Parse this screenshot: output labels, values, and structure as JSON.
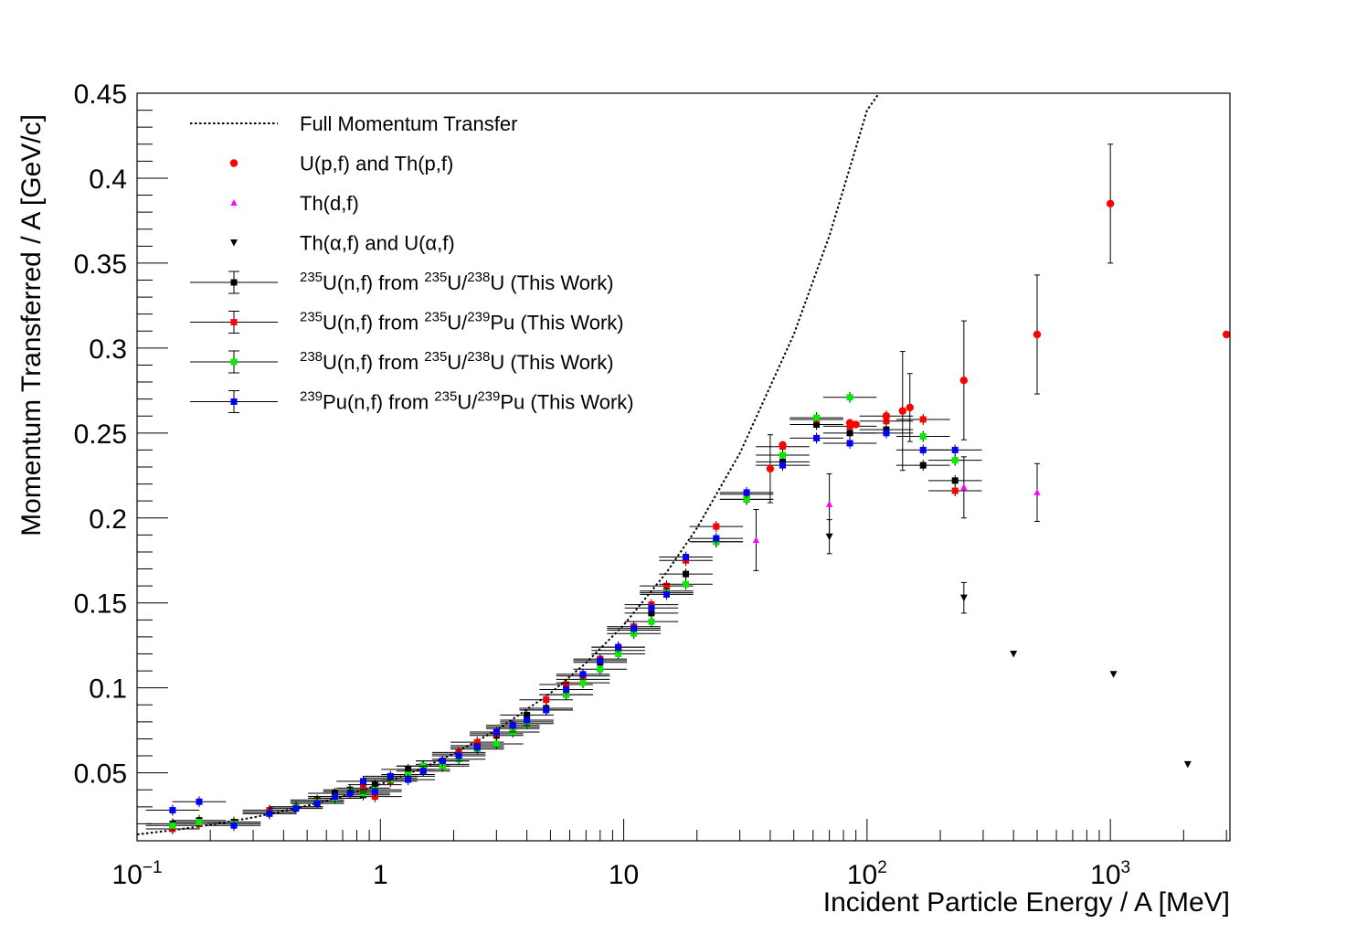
{
  "chart_data": {
    "type": "scatter",
    "xscale": "log",
    "xlim": [
      0.1,
      3100
    ],
    "ylim": [
      0.01,
      0.45
    ],
    "xlabel": "Incident Particle Energy / A [MeV]",
    "ylabel": "Momentum Transferred / A [GeV/c]",
    "x_ticks": [
      {
        "v": 0.1,
        "base": "10",
        "exp": "−1"
      },
      {
        "v": 1,
        "label": "1"
      },
      {
        "v": 10,
        "label": "10"
      },
      {
        "v": 100,
        "base": "10",
        "exp": "2"
      },
      {
        "v": 1000,
        "base": "10",
        "exp": "3"
      }
    ],
    "y_ticks": [
      {
        "v": 0.05,
        "label": "0.05"
      },
      {
        "v": 0.1,
        "label": "0.1"
      },
      {
        "v": 0.15,
        "label": "0.15"
      },
      {
        "v": 0.2,
        "label": "0.2"
      },
      {
        "v": 0.25,
        "label": "0.25"
      },
      {
        "v": 0.3,
        "label": "0.3"
      },
      {
        "v": 0.35,
        "label": "0.35"
      },
      {
        "v": 0.4,
        "label": "0.4"
      },
      {
        "v": 0.45,
        "label": "0.45"
      }
    ],
    "legend": {
      "placement": "top-left",
      "entries": [
        {
          "key": "curve",
          "parts": [
            {
              "t": "Full Momentum Transfer"
            }
          ]
        },
        {
          "key": "up",
          "parts": [
            {
              "t": "U(p,f) and Th(p,f)"
            }
          ]
        },
        {
          "key": "thd",
          "parts": [
            {
              "t": "Th(d,f)"
            }
          ]
        },
        {
          "key": "alpha",
          "parts": [
            {
              "t": "Th(α,f) and U(α,f)"
            }
          ]
        },
        {
          "key": "s1",
          "parts": [
            {
              "s": "235"
            },
            {
              "t": "U(n,f) from "
            },
            {
              "s": "235"
            },
            {
              "t": "U/"
            },
            {
              "s": "238"
            },
            {
              "t": "U (This Work)"
            }
          ]
        },
        {
          "key": "s2",
          "parts": [
            {
              "s": "235"
            },
            {
              "t": "U(n,f) from "
            },
            {
              "s": "235"
            },
            {
              "t": "U/"
            },
            {
              "s": "239"
            },
            {
              "t": "Pu (This Work)"
            }
          ]
        },
        {
          "key": "s3",
          "parts": [
            {
              "s": "238"
            },
            {
              "t": "U(n,f) from "
            },
            {
              "s": "235"
            },
            {
              "t": "U/"
            },
            {
              "s": "238"
            },
            {
              "t": "U (This Work)"
            }
          ]
        },
        {
          "key": "s4",
          "parts": [
            {
              "s": "239"
            },
            {
              "t": "Pu(n,f) from "
            },
            {
              "s": "235"
            },
            {
              "t": "U/"
            },
            {
              "s": "239"
            },
            {
              "t": "Pu (This Work)"
            }
          ]
        }
      ]
    },
    "curve": {
      "name": "Full Momentum Transfer",
      "style": "dotted",
      "x": [
        0.1,
        0.15,
        0.2,
        0.3,
        0.5,
        0.7,
        1,
        1.5,
        2,
        3,
        5,
        7,
        10,
        15,
        20,
        30,
        50,
        70,
        90,
        100,
        112
      ],
      "y": [
        0.0137,
        0.0168,
        0.0194,
        0.0237,
        0.0306,
        0.0362,
        0.0433,
        0.053,
        0.0613,
        0.075,
        0.0969,
        0.1147,
        0.137,
        0.168,
        0.194,
        0.238,
        0.308,
        0.366,
        0.418,
        0.44,
        0.45
      ]
    },
    "literature": [
      {
        "key": "up",
        "name": "U(p,f) and Th(p,f)",
        "color": "#ff0000",
        "marker": "circle",
        "points": [
          {
            "x": 40,
            "y": 0.229,
            "err": 0.02
          },
          {
            "x": 45,
            "y": 0.243
          },
          {
            "x": 85,
            "y": 0.256
          },
          {
            "x": 90,
            "y": 0.255
          },
          {
            "x": 120,
            "y": 0.26
          },
          {
            "x": 140,
            "y": 0.263,
            "err": 0.035
          },
          {
            "x": 150,
            "y": 0.265,
            "err": 0.02
          },
          {
            "x": 250,
            "y": 0.281,
            "err": 0.035
          },
          {
            "x": 500,
            "y": 0.308,
            "err": 0.035
          },
          {
            "x": 1000,
            "y": 0.385,
            "err": 0.035
          },
          {
            "x": 3000,
            "y": 0.308
          }
        ]
      },
      {
        "key": "thd",
        "name": "Th(d,f)",
        "color": "#ff00ff",
        "marker": "triangle-up",
        "points": [
          {
            "x": 35,
            "y": 0.187,
            "err": 0.018
          },
          {
            "x": 70,
            "y": 0.208,
            "err": 0.018
          },
          {
            "x": 250,
            "y": 0.218,
            "err": 0.018
          },
          {
            "x": 500,
            "y": 0.215,
            "err": 0.017
          }
        ]
      },
      {
        "key": "alpha",
        "name": "Th(α,f) and U(α,f)",
        "color": "#000000",
        "marker": "triangle-down",
        "points": [
          {
            "x": 70,
            "y": 0.189,
            "err": 0.01
          },
          {
            "x": 250,
            "y": 0.153,
            "err": 0.009
          },
          {
            "x": 400,
            "y": 0.12
          },
          {
            "x": 1030,
            "y": 0.108
          },
          {
            "x": 2080,
            "y": 0.055
          }
        ]
      }
    ],
    "series": [
      {
        "key": "s1",
        "name": "235U(n,f) from 235U/238U (This Work)",
        "color": "#000000",
        "x": [
          0.14,
          0.18,
          0.25,
          0.35,
          0.45,
          0.55,
          0.65,
          0.75,
          0.85,
          0.95,
          1.1,
          1.3,
          1.5,
          1.8,
          2.1,
          2.5,
          3,
          3.5,
          4,
          4.8,
          5.8,
          6.8,
          8,
          9.5,
          11,
          13,
          15,
          18,
          24,
          32,
          45,
          62,
          85,
          120,
          170,
          230
        ],
        "y": [
          0.02,
          0.022,
          0.021,
          0.027,
          0.03,
          0.033,
          0.038,
          0.04,
          0.037,
          0.043,
          0.047,
          0.052,
          0.054,
          0.057,
          0.061,
          0.066,
          0.072,
          0.077,
          0.084,
          0.088,
          0.096,
          0.105,
          0.115,
          0.122,
          0.134,
          0.144,
          0.157,
          0.167,
          0.186,
          0.211,
          0.233,
          0.255,
          0.25,
          0.252,
          0.231,
          0.222
        ]
      },
      {
        "key": "s2",
        "name": "235U(n,f) from 235U/239Pu (This Work)",
        "color": "#ff0000",
        "x": [
          0.14,
          0.18,
          0.25,
          0.35,
          0.45,
          0.55,
          0.65,
          0.75,
          0.85,
          0.95,
          1.1,
          1.3,
          1.5,
          1.8,
          2.1,
          2.5,
          3,
          3.5,
          4,
          4.8,
          5.8,
          6.8,
          8,
          9.5,
          11,
          13,
          15,
          18,
          24,
          32,
          45,
          62,
          85,
          120,
          170,
          230
        ],
        "y": [
          0.017,
          0.02,
          0.02,
          0.028,
          0.03,
          0.034,
          0.036,
          0.039,
          0.041,
          0.036,
          0.045,
          0.048,
          0.052,
          0.055,
          0.062,
          0.068,
          0.073,
          0.076,
          0.08,
          0.093,
          0.102,
          0.107,
          0.117,
          0.124,
          0.136,
          0.149,
          0.16,
          0.175,
          0.195,
          0.214,
          0.242,
          0.258,
          0.254,
          0.257,
          0.258,
          0.216
        ]
      },
      {
        "key": "s3",
        "name": "238U(n,f) from 235U/238U (This Work)",
        "color": "#00ee00",
        "x": [
          0.14,
          0.18,
          0.25,
          0.35,
          0.45,
          0.55,
          0.65,
          0.75,
          0.85,
          0.95,
          1.1,
          1.3,
          1.5,
          1.8,
          2.1,
          2.5,
          3,
          3.5,
          4,
          4.8,
          5.8,
          6.8,
          8,
          9.5,
          11,
          13,
          15,
          18,
          24,
          32,
          45,
          62,
          85,
          120,
          170,
          230
        ],
        "y": [
          0.019,
          0.021,
          0.02,
          0.026,
          0.03,
          0.033,
          0.035,
          0.039,
          0.038,
          0.04,
          0.046,
          0.049,
          0.054,
          0.054,
          0.058,
          0.064,
          0.067,
          0.074,
          0.079,
          0.087,
          0.096,
          0.103,
          0.111,
          0.12,
          0.132,
          0.139,
          0.156,
          0.161,
          0.186,
          0.211,
          0.237,
          0.259,
          0.271,
          0.26,
          0.248,
          0.234
        ]
      },
      {
        "key": "s4",
        "name": "239Pu(n,f) from 235U/239Pu (This Work)",
        "color": "#0000ff",
        "x": [
          0.14,
          0.18,
          0.25,
          0.35,
          0.45,
          0.55,
          0.65,
          0.75,
          0.85,
          0.95,
          1.1,
          1.3,
          1.5,
          1.8,
          2.1,
          2.5,
          3,
          3.5,
          4,
          4.8,
          5.8,
          6.8,
          8,
          9.5,
          11,
          13,
          15,
          18,
          24,
          32,
          45,
          62,
          85,
          120,
          170,
          230
        ],
        "y": [
          0.028,
          0.033,
          0.019,
          0.026,
          0.029,
          0.032,
          0.036,
          0.038,
          0.045,
          0.039,
          0.048,
          0.046,
          0.051,
          0.057,
          0.06,
          0.065,
          0.074,
          0.078,
          0.081,
          0.087,
          0.099,
          0.108,
          0.116,
          0.124,
          0.135,
          0.147,
          0.155,
          0.177,
          0.188,
          0.215,
          0.231,
          0.247,
          0.244,
          0.25,
          0.24,
          0.24
        ]
      }
    ]
  }
}
